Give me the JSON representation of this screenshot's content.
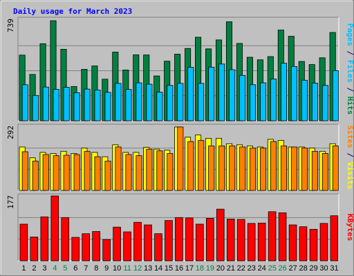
{
  "chart_data": [
    {
      "type": "bar",
      "title": "Daily usage for March 2023",
      "panel": "hits-files-pages",
      "categories": [
        "1",
        "2",
        "3",
        "4",
        "5",
        "6",
        "7",
        "8",
        "9",
        "10",
        "11",
        "12",
        "13",
        "14",
        "15",
        "16",
        "17",
        "18",
        "19",
        "20",
        "21",
        "22",
        "23",
        "24",
        "25",
        "26",
        "27",
        "28",
        "29",
        "30",
        "31"
      ],
      "weekend_days": [
        "4",
        "5",
        "11",
        "12",
        "18",
        "19",
        "25",
        "26"
      ],
      "ymax_label": "739",
      "ylim": [
        0,
        739
      ],
      "series": [
        {
          "name": "Hits",
          "color": "#008040",
          "values": [
            485,
            342,
            569,
            739,
            528,
            253,
            380,
            405,
            307,
            507,
            375,
            487,
            486,
            331,
            440,
            492,
            534,
            617,
            531,
            597,
            731,
            571,
            469,
            450,
            474,
            670,
            624,
            438,
            415,
            465,
            652
          ]
        },
        {
          "name": "Files",
          "color": "#00c0ff",
          "values": [
            266,
            187,
            249,
            232,
            247,
            207,
            234,
            227,
            210,
            276,
            231,
            280,
            270,
            211,
            261,
            276,
            395,
            276,
            396,
            419,
            377,
            335,
            266,
            280,
            308,
            425,
            401,
            299,
            278,
            261,
            370
          ]
        },
        {
          "name": "Pages",
          "color": "#00c0ff",
          "values": [
            0,
            0,
            0,
            0,
            0,
            0,
            0,
            0,
            0,
            0,
            0,
            0,
            0,
            0,
            0,
            0,
            0,
            0,
            0,
            0,
            0,
            0,
            0,
            0,
            0,
            0,
            0,
            0,
            0,
            0,
            0
          ]
        }
      ],
      "right_labels": [
        {
          "text": "Pages",
          "color": "#00c0ff"
        },
        {
          "text": " / ",
          "color": "#000080"
        },
        {
          "text": "Files",
          "color": "#00c0ff"
        },
        {
          "text": " / ",
          "color": "#000080"
        },
        {
          "text": "Hits",
          "color": "#008040"
        }
      ]
    },
    {
      "type": "bar",
      "panel": "visits-sites",
      "ymax_label": "292",
      "ylim": [
        0,
        292
      ],
      "series": [
        {
          "name": "Visits",
          "color": "#ffff00",
          "values": [
            200,
            150,
            175,
            170,
            180,
            170,
            195,
            175,
            155,
            210,
            175,
            175,
            198,
            190,
            185,
            292,
            245,
            255,
            240,
            240,
            215,
            210,
            205,
            200,
            235,
            230,
            200,
            200,
            195,
            180,
            215
          ]
        },
        {
          "name": "Sites",
          "color": "#ff8000",
          "values": [
            178,
            135,
            165,
            160,
            162,
            165,
            180,
            155,
            135,
            200,
            165,
            160,
            190,
            182,
            170,
            292,
            225,
            230,
            205,
            205,
            205,
            200,
            195,
            195,
            225,
            205,
            200,
            195,
            180,
            170,
            205
          ]
        }
      ],
      "right_labels": [
        {
          "text": "Sites",
          "color": "#ff8000"
        },
        {
          "text": " / ",
          "color": "#000080"
        },
        {
          "text": "Visits",
          "color": "#ffff00"
        }
      ]
    },
    {
      "type": "bar",
      "panel": "kbytes",
      "ymax_label": "177",
      "ylim": [
        0,
        177
      ],
      "series": [
        {
          "name": "KBytes",
          "color": "#ff0000",
          "values": [
            100,
            65,
            120,
            177,
            118,
            64,
            74,
            80,
            58,
            92,
            79,
            105,
            98,
            74,
            110,
            118,
            117,
            100,
            116,
            141,
            114,
            113,
            102,
            103,
            134,
            131,
            98,
            93,
            86,
            102,
            123
          ]
        }
      ],
      "right_labels": [
        {
          "text": "KBytes",
          "color": "#ff0000"
        }
      ]
    }
  ],
  "colors": {
    "background": "#c0c0c0",
    "plot_background": "#c0c0c0",
    "title": "#0000ff",
    "weekday_tick": "#000000",
    "weekend_tick": "#008040",
    "axis_label": "#000000"
  }
}
